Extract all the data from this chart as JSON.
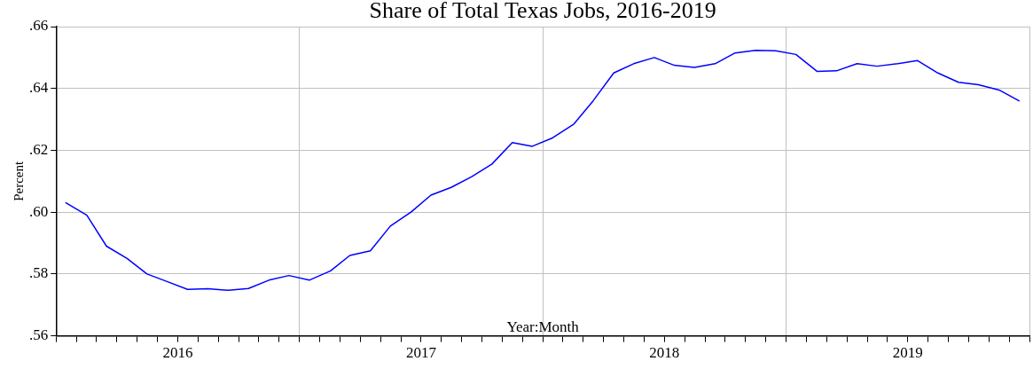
{
  "chart_data": {
    "type": "line",
    "title": "Share of Total Texas Jobs, 2016-2019",
    "xlabel": "Year:Month",
    "ylabel": "Percent",
    "x": [
      "2016-01-16",
      "2016-02-16",
      "2016-03-16",
      "2016-04-16",
      "2016-05-16",
      "2016-06-16",
      "2016-07-16",
      "2016-08-16",
      "2016-09-16",
      "2016-10-16",
      "2016-11-16",
      "2016-12-16",
      "2017-01-16",
      "2017-02-16",
      "2017-03-16",
      "2017-04-16",
      "2017-05-16",
      "2017-06-16",
      "2017-07-16",
      "2017-08-16",
      "2017-09-16",
      "2017-10-16",
      "2017-11-16",
      "2017-12-16",
      "2018-01-16",
      "2018-02-16",
      "2018-03-16",
      "2018-04-16",
      "2018-05-16",
      "2018-06-16",
      "2018-07-16",
      "2018-08-16",
      "2018-09-16",
      "2018-10-16",
      "2018-11-16",
      "2018-12-16",
      "2019-01-16",
      "2019-02-16",
      "2019-03-16",
      "2019-04-16",
      "2019-05-16",
      "2019-06-16",
      "2019-07-16",
      "2019-08-16",
      "2019-09-16",
      "2019-10-16",
      "2019-11-16",
      "2019-12-16"
    ],
    "series": [
      {
        "color": "#0000ff",
        "values": [
          0.603,
          0.599,
          0.589,
          0.585,
          0.58,
          0.5775,
          0.575,
          0.5752,
          0.5747,
          0.5753,
          0.578,
          0.5795,
          0.578,
          0.581,
          0.586,
          0.5875,
          0.5955,
          0.6,
          0.6055,
          0.608,
          0.6115,
          0.6155,
          0.6225,
          0.6213,
          0.624,
          0.6285,
          0.636,
          0.645,
          0.648,
          0.65,
          0.6475,
          0.6468,
          0.648,
          0.6515,
          0.6523,
          0.6522,
          0.651,
          0.6455,
          0.6457,
          0.648,
          0.6472,
          0.648,
          0.649,
          0.645,
          0.642,
          0.6412,
          0.6395,
          0.636
        ]
      }
    ],
    "xlim": [
      "2016-01",
      "2020-01"
    ],
    "xticks": [
      {
        "value": "2016-01",
        "label": null
      },
      {
        "value": "2016-02",
        "label": null
      },
      {
        "value": "2016-03",
        "label": null
      },
      {
        "value": "2016-04",
        "label": null
      },
      {
        "value": "2016-05",
        "label": null
      },
      {
        "value": "2016-06",
        "label": null
      },
      {
        "value": "2016-07",
        "label": "2016"
      },
      {
        "value": "2016-08",
        "label": null
      },
      {
        "value": "2016-09",
        "label": null
      },
      {
        "value": "2016-10",
        "label": null
      },
      {
        "value": "2016-11",
        "label": null
      },
      {
        "value": "2016-12",
        "label": null
      },
      {
        "value": "2017-01",
        "label": null
      },
      {
        "value": "2017-02",
        "label": null
      },
      {
        "value": "2017-03",
        "label": null
      },
      {
        "value": "2017-04",
        "label": null
      },
      {
        "value": "2017-05",
        "label": null
      },
      {
        "value": "2017-06",
        "label": null
      },
      {
        "value": "2017-07",
        "label": "2017"
      },
      {
        "value": "2017-08",
        "label": null
      },
      {
        "value": "2017-09",
        "label": null
      },
      {
        "value": "2017-10",
        "label": null
      },
      {
        "value": "2017-11",
        "label": null
      },
      {
        "value": "2017-12",
        "label": null
      },
      {
        "value": "2018-01",
        "label": null
      },
      {
        "value": "2018-02",
        "label": null
      },
      {
        "value": "2018-03",
        "label": null
      },
      {
        "value": "2018-04",
        "label": null
      },
      {
        "value": "2018-05",
        "label": null
      },
      {
        "value": "2018-06",
        "label": null
      },
      {
        "value": "2018-07",
        "label": "2018"
      },
      {
        "value": "2018-08",
        "label": null
      },
      {
        "value": "2018-09",
        "label": null
      },
      {
        "value": "2018-10",
        "label": null
      },
      {
        "value": "2018-11",
        "label": null
      },
      {
        "value": "2018-12",
        "label": null
      },
      {
        "value": "2019-01",
        "label": null
      },
      {
        "value": "2019-02",
        "label": null
      },
      {
        "value": "2019-03",
        "label": null
      },
      {
        "value": "2019-04",
        "label": null
      },
      {
        "value": "2019-05",
        "label": null
      },
      {
        "value": "2019-06",
        "label": null
      },
      {
        "value": "2019-07",
        "label": "2019"
      },
      {
        "value": "2019-08",
        "label": null
      },
      {
        "value": "2019-09",
        "label": null
      },
      {
        "value": "2019-10",
        "label": null
      },
      {
        "value": "2019-11",
        "label": null
      },
      {
        "value": "2019-12",
        "label": null
      },
      {
        "value": "2020-01",
        "label": null
      }
    ],
    "ylim": [
      0.56,
      0.66
    ],
    "yticks": [
      {
        "value": 0.56,
        "label": ".56"
      },
      {
        "value": 0.58,
        "label": ".58"
      },
      {
        "value": 0.6,
        "label": ".60"
      },
      {
        "value": 0.62,
        "label": ".62"
      },
      {
        "value": 0.64,
        "label": ".64"
      },
      {
        "value": 0.66,
        "label": ".66"
      }
    ],
    "grid": true,
    "marker": "none",
    "line_style": "solid",
    "legend": false
  }
}
